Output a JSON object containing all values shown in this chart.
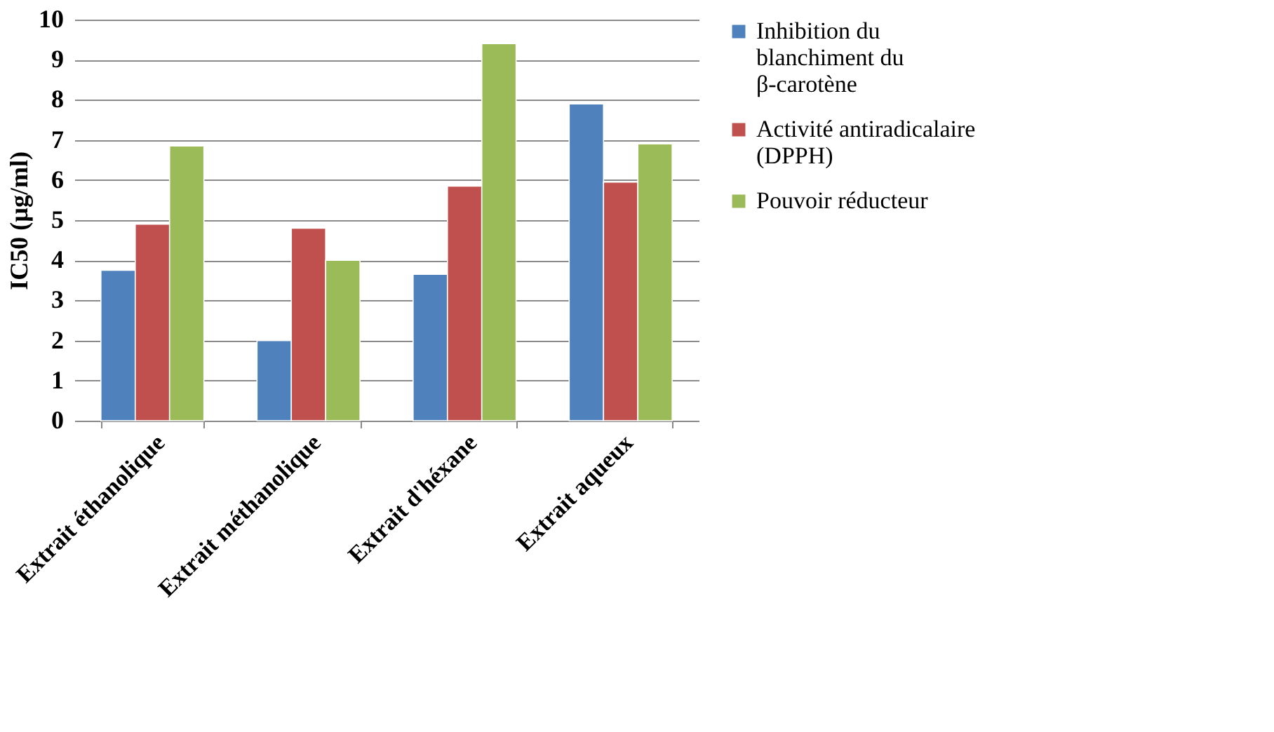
{
  "chart_data": {
    "type": "bar",
    "ylabel": "IC50  (µg/ml)",
    "categories": [
      "Extrait éthanolique",
      "Extrait méthanolique",
      "Extrait d'héxane",
      "Extrait aqueux"
    ],
    "series": [
      {
        "name": "Inhibition du blanchiment du β-carotène",
        "color": "#4f81bd",
        "values": [
          3.75,
          2.0,
          3.65,
          7.9
        ]
      },
      {
        "name": "Activité antiradicalaire (DPPH)",
        "color": "#c0504d",
        "values": [
          4.9,
          4.8,
          5.85,
          5.95
        ]
      },
      {
        "name": "Pouvoir réducteur",
        "color": "#9bbb59",
        "values": [
          6.85,
          4.0,
          9.4,
          6.9
        ]
      }
    ],
    "ylim": [
      0,
      10
    ],
    "yticks": [
      0,
      1,
      2,
      3,
      4,
      5,
      6,
      7,
      8,
      9,
      10
    ],
    "grid": "y",
    "legend": "right"
  }
}
